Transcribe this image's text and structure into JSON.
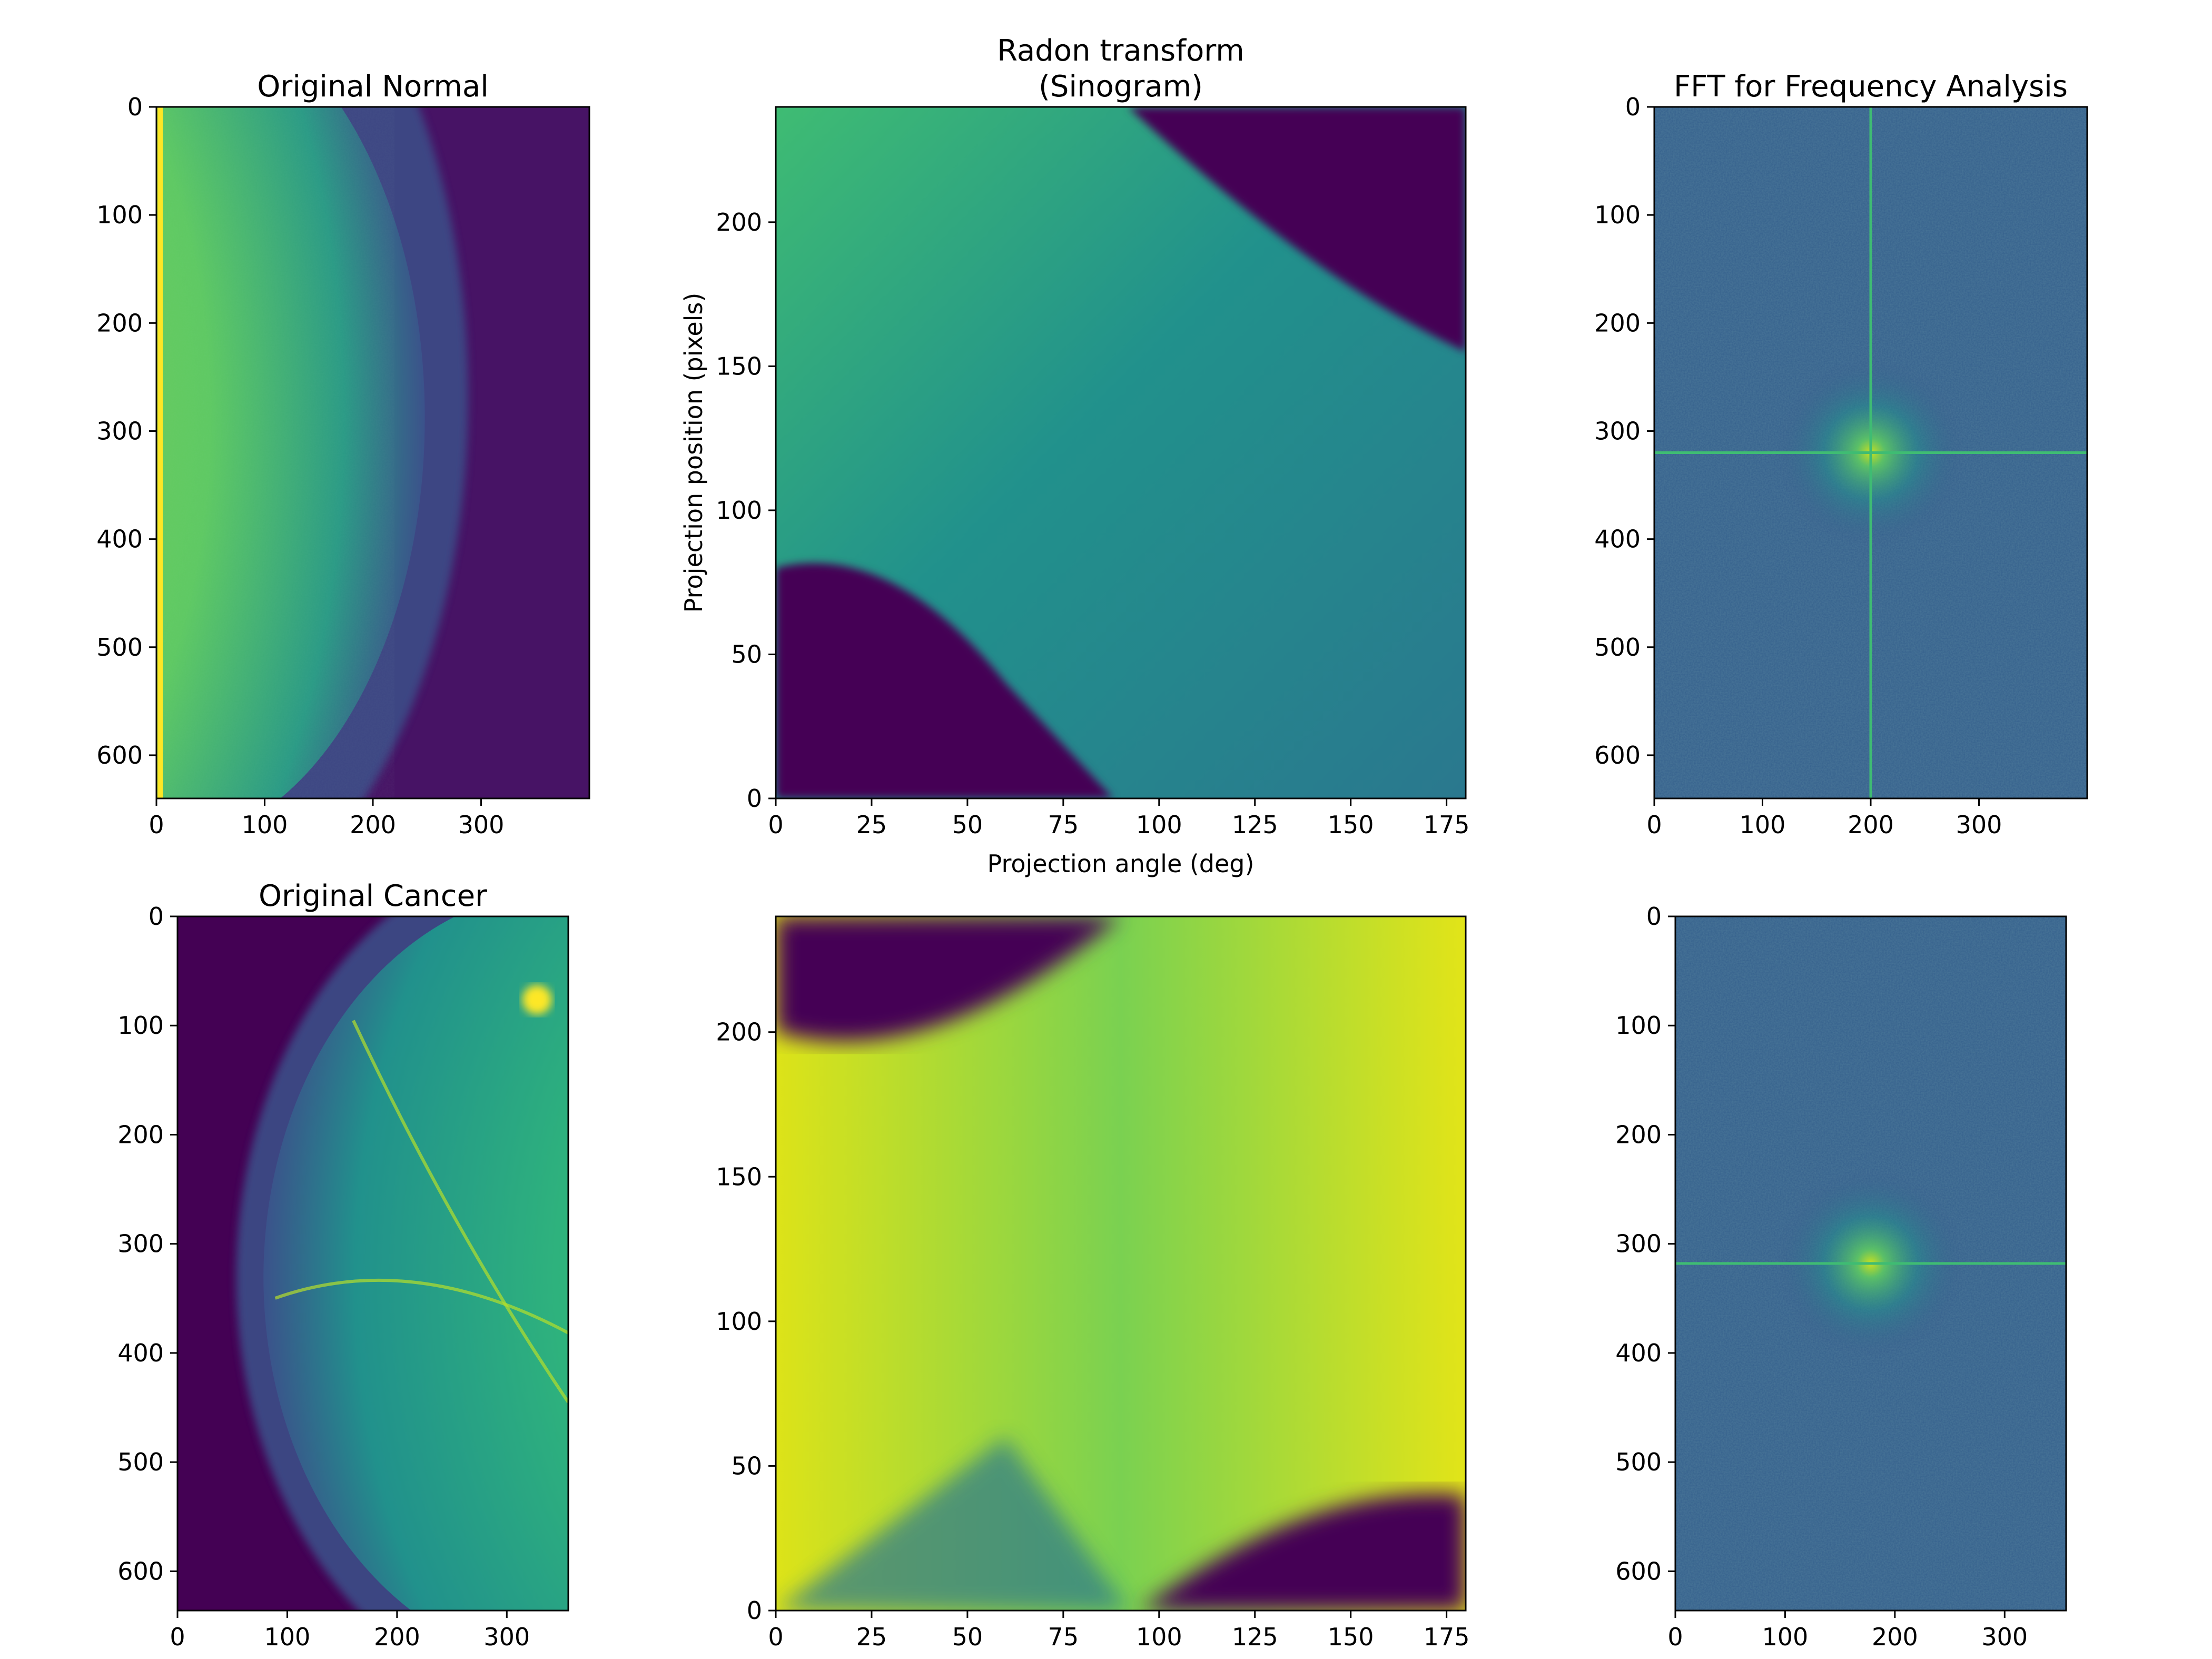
{
  "figure": {
    "background": "#ffffff",
    "colormap": [
      "#440154",
      "#3b528b",
      "#21918c",
      "#5ec962",
      "#fde725"
    ]
  },
  "chart_data": [
    {
      "id": "normal_image",
      "type": "heatmap",
      "title": "Original Normal",
      "xlabel": "",
      "ylabel": "",
      "xlim": [
        0,
        400
      ],
      "ylim": [
        640,
        0
      ],
      "y_inverted": true,
      "xticks": [
        0,
        100,
        200,
        300
      ],
      "yticks": [
        0,
        100,
        200,
        300,
        400,
        500,
        600
      ],
      "content": "mammogram, breast on left side"
    },
    {
      "id": "normal_sinogram",
      "type": "heatmap",
      "title": "Radon transform\n(Sinogram)",
      "xlabel": "Projection angle (deg)",
      "ylabel": "Projection position (pixels)",
      "xlim": [
        0,
        180
      ],
      "ylim": [
        0,
        240
      ],
      "y_inverted": false,
      "xticks": [
        0,
        25,
        50,
        75,
        100,
        125,
        150,
        175
      ],
      "yticks": [
        0,
        50,
        100,
        150,
        200
      ],
      "content": "sinogram"
    },
    {
      "id": "normal_fft",
      "type": "heatmap",
      "title": "FFT for Frequency Analysis",
      "xlabel": "",
      "ylabel": "",
      "xlim": [
        0,
        400
      ],
      "ylim": [
        640,
        0
      ],
      "y_inverted": true,
      "xticks": [
        0,
        100,
        200,
        300
      ],
      "yticks": [
        0,
        100,
        200,
        300,
        400,
        500,
        600
      ],
      "center": [
        200,
        320
      ],
      "content": "fft magnitude spectrum"
    },
    {
      "id": "cancer_image",
      "type": "heatmap",
      "title": "Original Cancer",
      "xlabel": "",
      "ylabel": "",
      "xlim": [
        0,
        356
      ],
      "ylim": [
        636,
        0
      ],
      "y_inverted": true,
      "xticks": [
        0,
        100,
        200,
        300
      ],
      "yticks": [
        0,
        100,
        200,
        300,
        400,
        500,
        600
      ],
      "content": "mammogram, breast on right side"
    },
    {
      "id": "cancer_sinogram",
      "type": "heatmap",
      "title": "",
      "xlabel": "",
      "ylabel": "",
      "xlim": [
        0,
        180
      ],
      "ylim": [
        0,
        240
      ],
      "y_inverted": false,
      "xticks": [
        0,
        25,
        50,
        75,
        100,
        125,
        150,
        175
      ],
      "yticks": [
        0,
        50,
        100,
        150,
        200
      ],
      "content": "sinogram"
    },
    {
      "id": "cancer_fft",
      "type": "heatmap",
      "title": "",
      "xlabel": "",
      "ylabel": "",
      "xlim": [
        0,
        356
      ],
      "ylim": [
        636,
        0
      ],
      "y_inverted": true,
      "xticks": [
        0,
        100,
        200,
        300
      ],
      "yticks": [
        0,
        100,
        200,
        300,
        400,
        500,
        600
      ],
      "center": [
        178,
        318
      ],
      "content": "fft magnitude spectrum"
    }
  ]
}
